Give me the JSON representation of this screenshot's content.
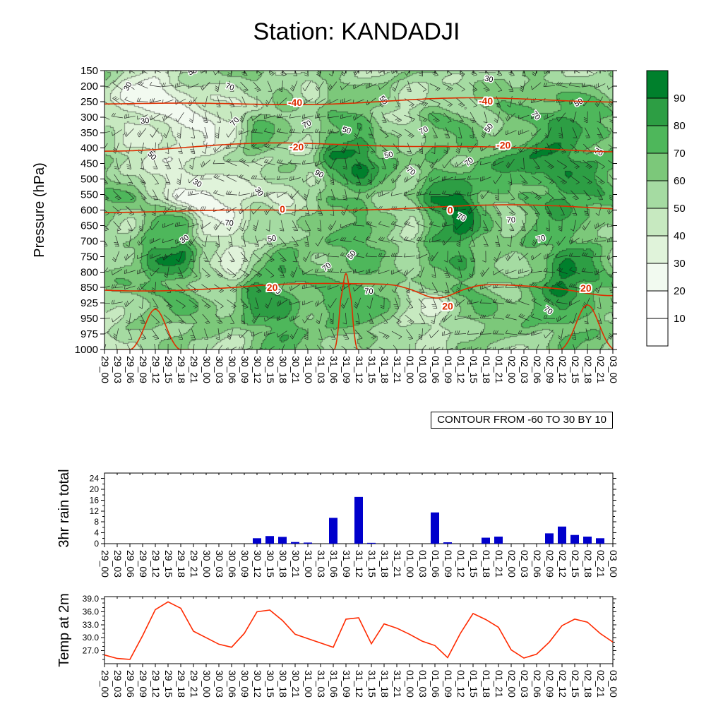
{
  "title": "Station: KANDADJI",
  "contour_note": "CONTOUR FROM -60 TO 30 BY 10",
  "colors": {
    "bar": "#0000cc",
    "temp_line": "#ff2a00",
    "red_contour": "#dd2e00",
    "frame": "#000000"
  },
  "time_labels": [
    "29_00",
    "29_03",
    "29_06",
    "29_09",
    "29_12",
    "29_15",
    "29_18",
    "29_21",
    "30_00",
    "30_03",
    "30_06",
    "30_09",
    "30_12",
    "30_15",
    "30_18",
    "30_21",
    "31_00",
    "31_03",
    "31_06",
    "31_09",
    "31_12",
    "31_15",
    "31_18",
    "31_21",
    "01_00",
    "01_03",
    "01_06",
    "01_09",
    "01_12",
    "01_15",
    "01_18",
    "01_21",
    "02_00",
    "02_03",
    "02_06",
    "02_09",
    "02_12",
    "02_15",
    "02_18",
    "02_21",
    "03_00"
  ],
  "chart_data": [
    {
      "type": "heatmap",
      "name": "relative-humidity-pressure-time-cross-section",
      "ylabel": "Pressure (hPa)",
      "y_ticks": [
        "150",
        "200",
        "250",
        "300",
        "350",
        "400",
        "450",
        "500",
        "550",
        "600",
        "650",
        "700",
        "750",
        "800",
        "850",
        "925",
        "950",
        "975",
        "1000"
      ],
      "colorbar_ticks": [
        "10",
        "20",
        "30",
        "40",
        "50",
        "60",
        "70",
        "80",
        "90"
      ],
      "colorbar_colors": [
        "#ffffff",
        "#ffffff",
        "#f2faf0",
        "#e0f3da",
        "#c7e9c0",
        "#a5dba2",
        "#7cc87a",
        "#4eb75b",
        "#2d9e44",
        "#00802c"
      ],
      "red_contour_labels": [
        {
          "text": "-40",
          "t": 0.375,
          "p": 252
        },
        {
          "text": "-40",
          "t": 0.75,
          "p": 248
        },
        {
          "text": "-20",
          "t": 0.378,
          "p": 396
        },
        {
          "text": "-20",
          "t": 0.785,
          "p": 390
        },
        {
          "text": "0",
          "t": 0.35,
          "p": 597
        },
        {
          "text": "0",
          "t": 0.68,
          "p": 600
        },
        {
          "text": "20",
          "t": 0.33,
          "p": 850
        },
        {
          "text": "20",
          "t": 0.947,
          "p": 852
        },
        {
          "text": "20",
          "t": 0.675,
          "p": 930
        }
      ],
      "contour_labels": [
        {
          "t": 0.05,
          "p": 205,
          "v": "30"
        },
        {
          "t": 0.08,
          "p": 320,
          "v": "30"
        },
        {
          "t": 0.09,
          "p": 430,
          "v": "50"
        },
        {
          "t": 0.175,
          "p": 160,
          "v": "50"
        },
        {
          "t": 0.18,
          "p": 520,
          "v": "30"
        },
        {
          "t": 0.16,
          "p": 700,
          "v": "30"
        },
        {
          "t": 0.245,
          "p": 210,
          "v": "70"
        },
        {
          "t": 0.26,
          "p": 320,
          "v": "70"
        },
        {
          "t": 0.245,
          "p": 650,
          "v": "70"
        },
        {
          "t": 0.3,
          "p": 545,
          "v": "30"
        },
        {
          "t": 0.33,
          "p": 700,
          "v": "50"
        },
        {
          "t": 0.335,
          "p": 870,
          "v": "70"
        },
        {
          "t": 0.4,
          "p": 330,
          "v": "70"
        },
        {
          "t": 0.42,
          "p": 490,
          "v": "90"
        },
        {
          "t": 0.44,
          "p": 790,
          "v": "70"
        },
        {
          "t": 0.475,
          "p": 350,
          "v": "50"
        },
        {
          "t": 0.49,
          "p": 750,
          "v": "50"
        },
        {
          "t": 0.52,
          "p": 880,
          "v": "70"
        },
        {
          "t": 0.545,
          "p": 250,
          "v": "50"
        },
        {
          "t": 0.56,
          "p": 430,
          "v": "50"
        },
        {
          "t": 0.6,
          "p": 480,
          "v": "70"
        },
        {
          "t": 0.63,
          "p": 350,
          "v": "70"
        },
        {
          "t": 0.7,
          "p": 630,
          "v": "70"
        },
        {
          "t": 0.72,
          "p": 450,
          "v": "70"
        },
        {
          "t": 0.755,
          "p": 185,
          "v": "30"
        },
        {
          "t": 0.76,
          "p": 340,
          "v": "50"
        },
        {
          "t": 0.8,
          "p": 640,
          "v": "70"
        },
        {
          "t": 0.845,
          "p": 300,
          "v": "70"
        },
        {
          "t": 0.86,
          "p": 700,
          "v": "70"
        },
        {
          "t": 0.87,
          "p": 940,
          "v": "70"
        },
        {
          "t": 0.935,
          "p": 260,
          "v": "50"
        },
        {
          "t": 0.97,
          "p": 420,
          "v": "70"
        }
      ],
      "rh_levels": [
        150,
        250,
        350,
        450,
        550,
        650,
        750,
        850,
        925,
        1000
      ],
      "rh_grid": [
        [
          55,
          45,
          40,
          50,
          55,
          60,
          65,
          55,
          50,
          60,
          55,
          50,
          55,
          60,
          55,
          50,
          55,
          60,
          55,
          50,
          55
        ],
        [
          45,
          30,
          25,
          30,
          35,
          40,
          55,
          60,
          50,
          70,
          65,
          55,
          45,
          60,
          55,
          60,
          65,
          70,
          75,
          70,
          65
        ],
        [
          55,
          40,
          35,
          30,
          35,
          45,
          70,
          60,
          50,
          75,
          80,
          60,
          55,
          70,
          65,
          60,
          70,
          75,
          80,
          75,
          70
        ],
        [
          60,
          50,
          40,
          35,
          40,
          45,
          55,
          60,
          55,
          85,
          92,
          70,
          60,
          75,
          65,
          70,
          80,
          85,
          92,
          80,
          75
        ],
        [
          70,
          65,
          45,
          30,
          25,
          35,
          45,
          35,
          45,
          70,
          75,
          60,
          55,
          85,
          92,
          70,
          65,
          75,
          80,
          75,
          70
        ],
        [
          60,
          55,
          75,
          70,
          40,
          35,
          50,
          55,
          70,
          65,
          70,
          60,
          50,
          80,
          92,
          70,
          60,
          70,
          75,
          70,
          65
        ],
        [
          55,
          60,
          88,
          92,
          50,
          35,
          60,
          70,
          60,
          70,
          75,
          65,
          55,
          75,
          80,
          60,
          55,
          70,
          85,
          75,
          60
        ],
        [
          60,
          65,
          70,
          65,
          60,
          55,
          80,
          75,
          65,
          70,
          75,
          70,
          50,
          60,
          70,
          65,
          60,
          70,
          92,
          80,
          65
        ],
        [
          55,
          60,
          65,
          70,
          65,
          60,
          82,
          85,
          70,
          75,
          70,
          65,
          55,
          40,
          60,
          70,
          65,
          70,
          80,
          75,
          70
        ],
        [
          45,
          50,
          55,
          60,
          55,
          50,
          65,
          70,
          60,
          65,
          60,
          55,
          50,
          45,
          55,
          60,
          55,
          60,
          65,
          60,
          55
        ]
      ]
    },
    {
      "type": "bar",
      "ylabel": "3hr rain total",
      "y_ticks": [
        0,
        4,
        8,
        12,
        16,
        20,
        24
      ],
      "ylim": [
        0,
        26
      ],
      "color": "#0000cc",
      "values": [
        0,
        0,
        0,
        0,
        0,
        0,
        0,
        0,
        0,
        0,
        0,
        0,
        2,
        2.8,
        2.5,
        0.6,
        0.4,
        0,
        9.5,
        0,
        17.2,
        0.3,
        0,
        0,
        0,
        0,
        11.5,
        0.5,
        0,
        0,
        2.2,
        2.6,
        0,
        0,
        0,
        3.8,
        6.3,
        3.2,
        2.6,
        2,
        0
      ]
    },
    {
      "type": "line",
      "ylabel": "Temp at 2m",
      "y_ticks": [
        27,
        30,
        33,
        36,
        39
      ],
      "y_tick_labels": [
        "27.0",
        "30.0",
        "33.0",
        "36.0",
        "39.0"
      ],
      "ylim": [
        24,
        39.5
      ],
      "color": "#ff2a00",
      "values": [
        26.0,
        25.2,
        25.0,
        30.5,
        36.5,
        38.3,
        36.8,
        31.5,
        30.0,
        28.5,
        27.8,
        31.0,
        36.0,
        36.4,
        34.0,
        30.8,
        29.8,
        28.8,
        27.8,
        34.3,
        34.6,
        28.6,
        33.2,
        32.2,
        30.8,
        29.2,
        28.2,
        25.4,
        31.0,
        35.6,
        34.2,
        32.4,
        27.2,
        25.3,
        26.2,
        29.0,
        32.8,
        34.3,
        33.6,
        31.0,
        29.0
      ]
    }
  ]
}
